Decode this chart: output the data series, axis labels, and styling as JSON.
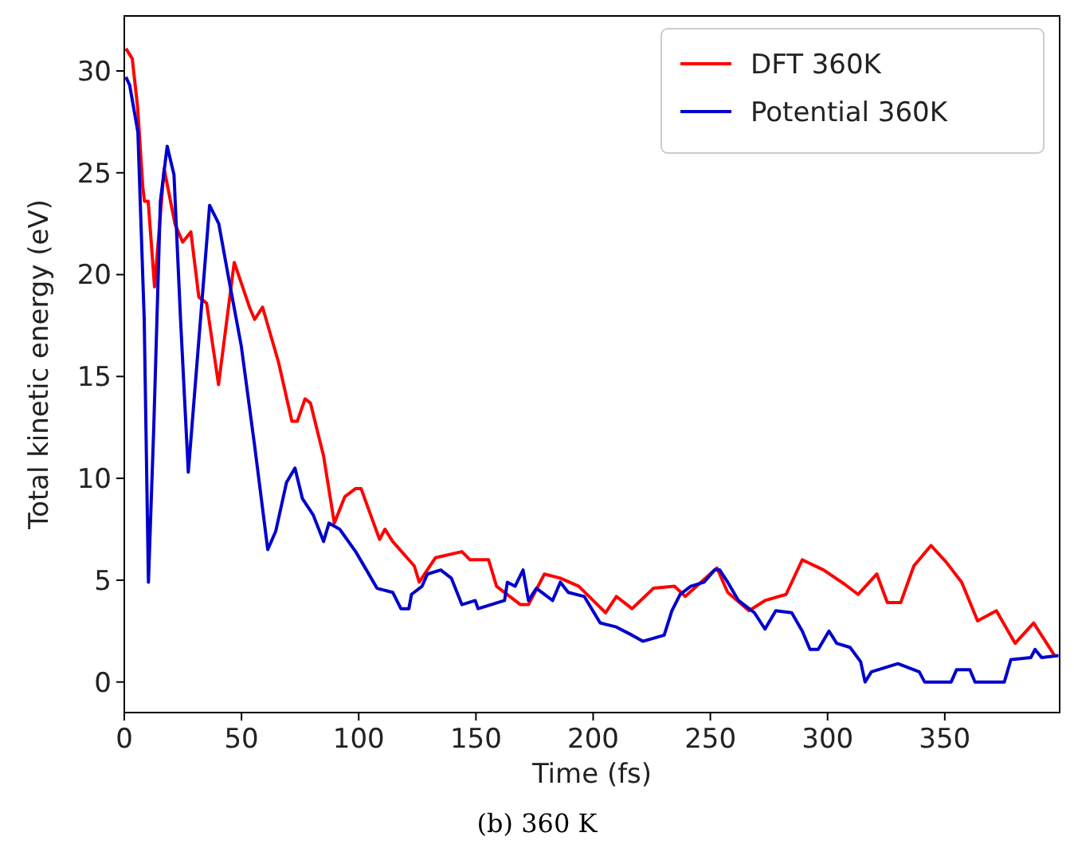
{
  "chart_data": {
    "type": "line",
    "xlabel": "Time (fs)",
    "ylabel": "Total kinetic energy (eV)",
    "annotations": [
      "(b) 360 K"
    ],
    "xlim": [
      0,
      399
    ],
    "xticks": [
      0,
      50,
      100,
      150,
      200,
      250,
      300,
      350
    ],
    "ylim": [
      -1.5,
      32.7
    ],
    "yticks": [
      0,
      5,
      10,
      15,
      20,
      25,
      30
    ],
    "legend": "top right",
    "grid": false,
    "marker": "none",
    "line_style": "solid",
    "series": [
      {
        "name": "DFT 360K",
        "color": "#ff0000",
        "x": [
          0.7,
          3.4,
          5.7,
          7.9,
          8.6,
          10.2,
          12.9,
          17,
          21.6,
          24.9,
          28.4,
          31.8,
          35.1,
          40.2,
          46.9,
          53.4,
          55.6,
          59,
          65.8,
          71.5,
          73.8,
          77.1,
          79.4,
          85,
          89.6,
          94.1,
          98.7,
          101,
          105.4,
          108.9,
          111.2,
          114.5,
          123.7,
          125.8,
          132.7,
          144,
          147.5,
          155.4,
          158.8,
          169,
          172.4,
          179.2,
          186,
          193.9,
          205.3,
          209.9,
          216.6,
          225.7,
          234.7,
          239.3,
          252.8,
          257.4,
          266.5,
          273.3,
          282.3,
          289.2,
          298.3,
          307.3,
          313,
          321,
          325.5,
          331.2,
          336.8,
          344.1,
          350.5,
          357.2,
          364,
          372,
          380,
          387.9,
          396.8
        ],
        "values": [
          31.1,
          30.6,
          28.2,
          24.3,
          23.6,
          23.6,
          19.4,
          25.2,
          22.5,
          21.6,
          22.1,
          18.9,
          18.6,
          14.6,
          20.6,
          18.4,
          17.8,
          18.4,
          15.7,
          12.8,
          12.8,
          13.9,
          13.7,
          11.1,
          7.8,
          9.1,
          9.5,
          9.5,
          8.1,
          7.0,
          7.5,
          6.9,
          5.7,
          4.9,
          6.1,
          6.4,
          6.0,
          6.0,
          4.7,
          3.8,
          3.8,
          5.3,
          5.1,
          4.7,
          3.4,
          4.2,
          3.6,
          4.6,
          4.7,
          4.2,
          5.6,
          4.4,
          3.5,
          4.0,
          4.3,
          6.0,
          5.5,
          4.8,
          4.3,
          5.3,
          3.9,
          3.9,
          5.7,
          6.7,
          5.9,
          4.9,
          3.0,
          3.5,
          1.9,
          2.9,
          1.3
        ]
      },
      {
        "name": "Potential 360K",
        "color": "#0000cc",
        "x": [
          0.7,
          2.3,
          5.8,
          8.5,
          10.3,
          12.6,
          15.4,
          18.3,
          21.2,
          24,
          27.3,
          30.7,
          36.4,
          40.3,
          44.4,
          49.9,
          55.6,
          61.2,
          64.6,
          69.2,
          72.8,
          76,
          80.6,
          85,
          87.3,
          91.9,
          98.7,
          103.3,
          107.8,
          114.5,
          118,
          121.4,
          122.5,
          127,
          129.3,
          135,
          139.5,
          144,
          149.7,
          150.9,
          162.2,
          163.4,
          166.7,
          170.1,
          172.4,
          175.8,
          182.7,
          186,
          189.4,
          196.2,
          203,
          209.9,
          216.6,
          221.2,
          230.3,
          233.6,
          237.1,
          241.6,
          247.3,
          251.8,
          254,
          257.4,
          262,
          268.8,
          273.3,
          277.9,
          284.7,
          289.2,
          292.5,
          296,
          300.6,
          303.9,
          309.6,
          314.1,
          316,
          318.7,
          330,
          339.1,
          341.4,
          352.7,
          355,
          360.7,
          362.9,
          375.4,
          378.2,
          386.7,
          388.5,
          391.3,
          398.5
        ],
        "values": [
          29.7,
          29.3,
          27.0,
          17.8,
          4.9,
          12.6,
          23.6,
          26.3,
          24.9,
          17.8,
          10.3,
          15.2,
          23.4,
          22.5,
          19.9,
          16.5,
          11.6,
          6.5,
          7.4,
          9.8,
          10.5,
          9.0,
          8.2,
          6.9,
          7.8,
          7.5,
          6.4,
          5.5,
          4.6,
          4.4,
          3.6,
          3.6,
          4.3,
          4.7,
          5.3,
          5.5,
          5.1,
          3.8,
          4.0,
          3.6,
          4.0,
          4.9,
          4.7,
          5.5,
          4.0,
          4.6,
          4.0,
          4.9,
          4.4,
          4.2,
          2.9,
          2.7,
          2.3,
          2.0,
          2.3,
          3.5,
          4.3,
          4.7,
          4.9,
          5.5,
          5.5,
          4.9,
          4.0,
          3.4,
          2.6,
          3.5,
          3.4,
          2.5,
          1.6,
          1.6,
          2.5,
          1.9,
          1.7,
          1.0,
          0.0,
          0.5,
          0.9,
          0.5,
          0,
          0,
          0.6,
          0.6,
          0,
          0,
          1.1,
          1.2,
          1.6,
          1.2,
          1.3
        ]
      }
    ]
  }
}
